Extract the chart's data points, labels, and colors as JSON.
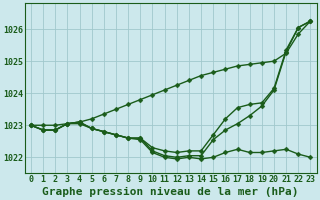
{
  "title": "Graphe pression niveau de la mer (hPa)",
  "background_color": "#cce8ec",
  "grid_color": "#a0c8cc",
  "line_color": "#1a5c1a",
  "x_labels": [
    "0",
    "1",
    "2",
    "3",
    "4",
    "5",
    "6",
    "7",
    "8",
    "9",
    "10",
    "11",
    "12",
    "13",
    "14",
    "15",
    "16",
    "17",
    "18",
    "19",
    "20",
    "21",
    "22",
    "23"
  ],
  "ylim": [
    1021.5,
    1026.8
  ],
  "yticks": [
    1022,
    1023,
    1024,
    1025,
    1026
  ],
  "series": [
    [
      1023.0,
      1022.85,
      1022.85,
      1023.05,
      1023.05,
      1022.9,
      1022.8,
      1022.7,
      1022.6,
      1022.55,
      1022.15,
      1022.0,
      1021.95,
      1022.0,
      1021.95,
      1022.0,
      1022.15,
      1022.25,
      1022.15,
      1022.15,
      1022.2,
      1022.25,
      1022.1,
      1022.0
    ],
    [
      1023.0,
      1022.85,
      1022.85,
      1023.05,
      1023.1,
      1022.9,
      1022.8,
      1022.7,
      1022.6,
      1022.6,
      1022.2,
      1022.05,
      1022.0,
      1022.05,
      1022.05,
      1022.55,
      1022.85,
      1023.05,
      1023.3,
      1023.6,
      1024.1,
      1025.3,
      1026.05,
      1026.25
    ],
    [
      1023.0,
      1022.85,
      1022.85,
      1023.05,
      1023.1,
      1022.9,
      1022.8,
      1022.7,
      1022.6,
      1022.6,
      1022.3,
      1022.2,
      1022.15,
      1022.2,
      1022.2,
      1022.7,
      1023.2,
      1023.55,
      1023.65,
      1023.7,
      1024.15,
      1025.35,
      1026.05,
      1026.25
    ]
  ],
  "series4": [
    1023.0,
    1023.0,
    1023.0,
    1023.05,
    1023.1,
    1023.2,
    1023.35,
    1023.5,
    1023.65,
    1023.8,
    1023.95,
    1024.1,
    1024.25,
    1024.4,
    1024.55,
    1024.65,
    1024.75,
    1024.85,
    1024.9,
    1024.95,
    1025.0,
    1025.25,
    1025.85,
    1026.25
  ],
  "marker_size": 2.5,
  "line_width": 1.0,
  "title_fontsize": 8,
  "tick_fontsize": 6.0
}
